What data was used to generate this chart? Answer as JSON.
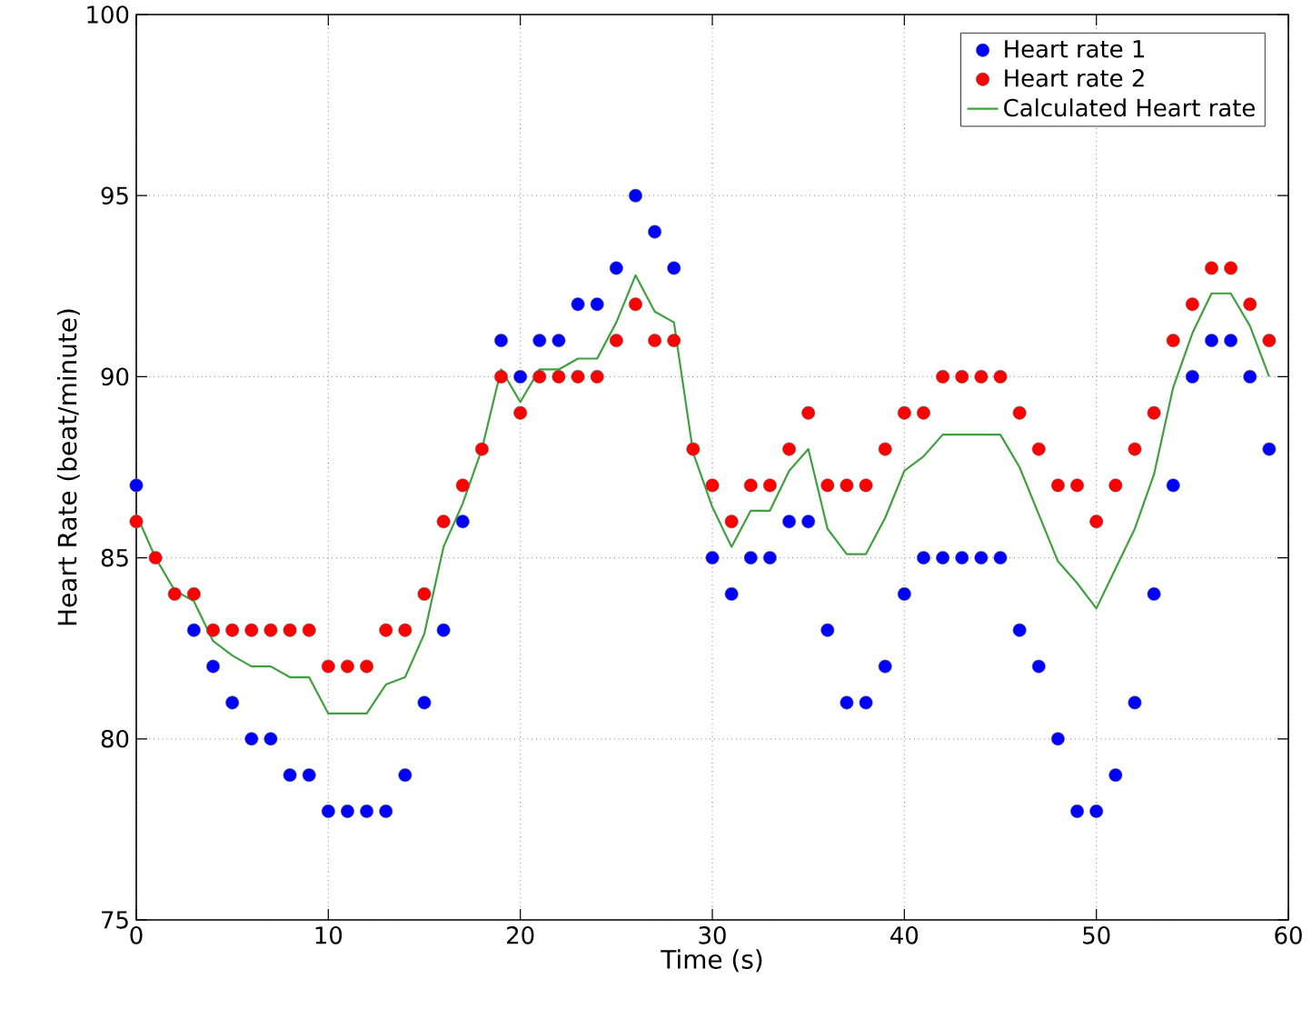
{
  "chart_data": {
    "type": "scatter",
    "xlabel": "Time (s)",
    "ylabel": "Heart Rate (beat/minute)",
    "x": [
      0,
      1,
      2,
      3,
      4,
      5,
      6,
      7,
      8,
      9,
      10,
      11,
      12,
      13,
      14,
      15,
      16,
      17,
      18,
      19,
      20,
      21,
      22,
      23,
      24,
      25,
      26,
      27,
      28,
      29,
      30,
      31,
      32,
      33,
      34,
      35,
      36,
      37,
      38,
      39,
      40,
      41,
      42,
      43,
      44,
      45,
      46,
      47,
      48,
      49,
      50,
      51,
      52,
      53,
      54,
      55,
      56,
      57,
      58,
      59
    ],
    "series": [
      {
        "name": "Heart rate 1",
        "color": "#0000ff",
        "marker": "circle",
        "values": [
          87,
          null,
          null,
          83,
          82,
          81,
          80,
          80,
          79,
          79,
          78,
          78,
          78,
          78,
          79,
          81,
          83,
          86,
          null,
          91,
          90,
          91,
          91,
          92,
          92,
          93,
          95,
          94,
          93,
          null,
          85,
          84,
          85,
          85,
          86,
          86,
          83,
          81,
          81,
          82,
          84,
          85,
          85,
          85,
          85,
          85,
          83,
          82,
          80,
          78,
          78,
          79,
          81,
          84,
          87,
          90,
          91,
          91,
          90,
          88
        ]
      },
      {
        "name": "Heart rate 2",
        "color": "#ff0000",
        "marker": "circle",
        "values": [
          86,
          85,
          84,
          84,
          83,
          83,
          83,
          83,
          83,
          83,
          82,
          82,
          82,
          83,
          83,
          84,
          86,
          87,
          88,
          90,
          89,
          90,
          90,
          90,
          90,
          91,
          92,
          91,
          91,
          88,
          87,
          86,
          87,
          87,
          88,
          89,
          87,
          87,
          87,
          88,
          89,
          89,
          90,
          90,
          90,
          90,
          89,
          88,
          87,
          87,
          86,
          87,
          88,
          89,
          91,
          92,
          93,
          93,
          92,
          91
        ]
      },
      {
        "name": "Calculated Heart rate",
        "color": "#3fa03f",
        "type": "line",
        "marker": "none",
        "line_style": "solid",
        "values": [
          86.2,
          85,
          84.1,
          83.8,
          82.7,
          82.3,
          82,
          82,
          81.7,
          81.7,
          80.7,
          80.7,
          80.7,
          81.5,
          81.7,
          82.9,
          85.3,
          86.5,
          88,
          90.2,
          89.3,
          90.2,
          90.2,
          90.5,
          90.5,
          91.5,
          92.8,
          91.8,
          91.5,
          87.9,
          86.4,
          85.3,
          86.3,
          86.3,
          87.4,
          88,
          85.8,
          85.1,
          85.1,
          86.1,
          87.4,
          87.8,
          88.4,
          88.4,
          88.4,
          88.4,
          87.5,
          86.2,
          84.9,
          84.3,
          83.6,
          84.7,
          85.8,
          87.3,
          89.7,
          91.2,
          92.3,
          92.3,
          91.4,
          90
        ]
      }
    ],
    "xlim": [
      0,
      60
    ],
    "ylim": [
      75,
      100
    ],
    "xticks": [
      0,
      10,
      20,
      30,
      40,
      50,
      60
    ],
    "yticks": [
      75,
      80,
      85,
      90,
      95,
      100
    ],
    "grid": true,
    "legend": "top right"
  }
}
